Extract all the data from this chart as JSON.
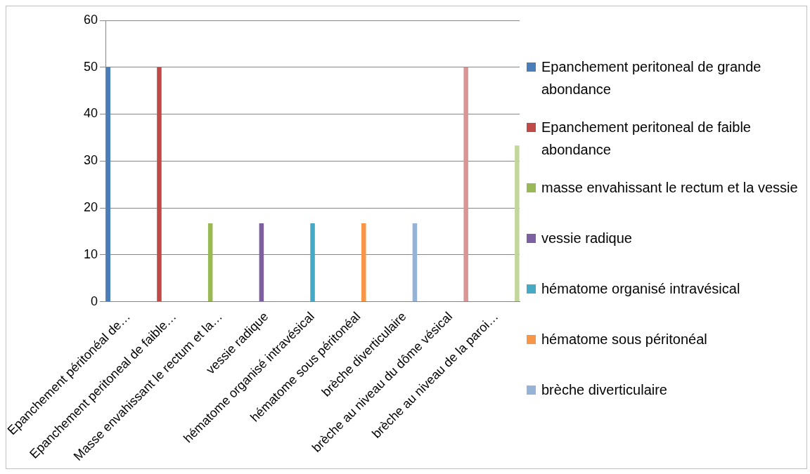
{
  "chart_data": {
    "type": "bar",
    "categories": [
      "Epanchement péritonéal de…",
      "Epanchement peritoneal de faible…",
      "Masse envahissant le rectum et la…",
      "vessie radique",
      "hématome organisé intravésical",
      "hématome sous péritonéal",
      "brèche diverticulaire",
      "brèche au niveau du dôme vésical",
      "brèche au niveau de la paroi…"
    ],
    "series": [
      {
        "name": "Epanchement peritoneal de grande abondance",
        "color": "#4a7ebb",
        "values": [
          50,
          null,
          null,
          null,
          null,
          null,
          null,
          null,
          null
        ]
      },
      {
        "name": "Epanchement peritoneal de faible abondance",
        "color": "#be4b48",
        "values": [
          null,
          50,
          null,
          null,
          null,
          null,
          null,
          null,
          null
        ]
      },
      {
        "name": "masse envahissant le rectum et la vessie",
        "color": "#98b954",
        "values": [
          null,
          null,
          16.7,
          null,
          null,
          null,
          null,
          null,
          null
        ]
      },
      {
        "name": "vessie radique",
        "color": "#7d60a0",
        "values": [
          null,
          null,
          null,
          16.7,
          null,
          null,
          null,
          null,
          null
        ]
      },
      {
        "name": "hématome organisé intravésical",
        "color": "#46aac5",
        "values": [
          null,
          null,
          null,
          null,
          16.7,
          null,
          null,
          null,
          null
        ]
      },
      {
        "name": "hématome sous péritonéal",
        "color": "#f79646",
        "values": [
          null,
          null,
          null,
          null,
          null,
          16.7,
          null,
          null,
          null
        ]
      },
      {
        "name": "brèche diverticulaire",
        "color": "#95b3d7",
        "values": [
          null,
          null,
          null,
          null,
          null,
          null,
          16.7,
          null,
          null
        ]
      },
      {
        "color": "#d99694",
        "values": [
          null,
          null,
          null,
          null,
          null,
          null,
          null,
          50,
          null
        ]
      },
      {
        "color": "#c3d69b",
        "values": [
          null,
          null,
          null,
          null,
          null,
          null,
          null,
          null,
          33.3
        ]
      }
    ],
    "ylim": [
      0,
      60
    ],
    "yticks": [
      0,
      10,
      20,
      30,
      40,
      50,
      60
    ],
    "grid": "y",
    "legend": "right"
  }
}
